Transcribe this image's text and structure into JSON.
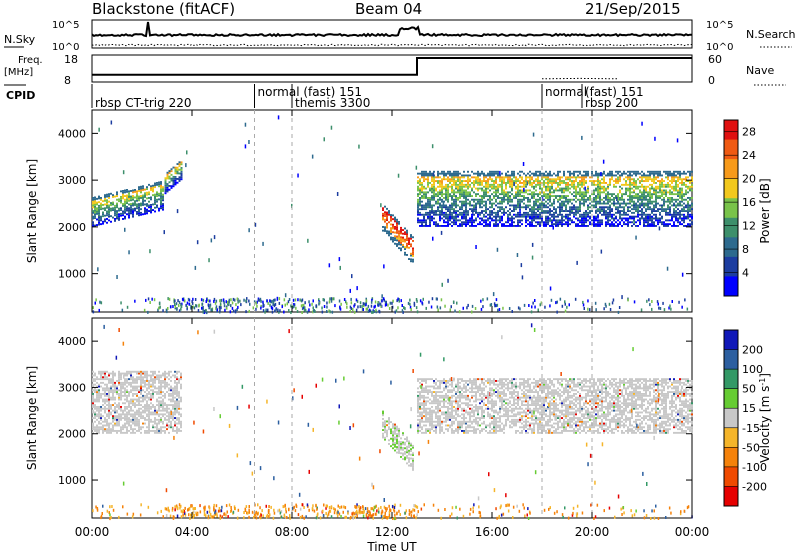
{
  "header": {
    "station": "Blackstone (fitACF)",
    "beam": "Beam 04",
    "date": "21/Sep/2015"
  },
  "top_panels": {
    "nsky_label": "N.Sky",
    "nsky_ticks": [
      "10^5",
      "10^0"
    ],
    "nsearch_ticks": [
      "10^5",
      "10^0"
    ],
    "nsearch_label": "N.Search",
    "freq_label": "Freq.",
    "freq_unit": "[MHz]",
    "freq_ticks": [
      "18",
      "8"
    ],
    "nave_ticks": [
      "60",
      "0"
    ],
    "nave_label": "Nave",
    "freq_series": {
      "times_hours": [
        0,
        13.0,
        13.0,
        24
      ],
      "values_mhz": [
        10.5,
        10.5,
        17.2,
        17.2
      ]
    },
    "nave_series": {
      "times_hours": [
        18,
        19.5,
        21
      ],
      "values": [
        5,
        6,
        5
      ]
    }
  },
  "cpid": {
    "label": "CPID",
    "markers": [
      {
        "time": 0.0,
        "text": "rbsp CT-trig 220",
        "row": 2
      },
      {
        "time": 6.5,
        "text": "normal (fast) 151",
        "row": 1
      },
      {
        "time": 8.0,
        "text": "themis 3300",
        "row": 2
      },
      {
        "time": 18.0,
        "text": "normal",
        "row": 1
      },
      {
        "time": 19.6,
        "text": "(fast) 151",
        "row": 1
      },
      {
        "time": 19.6,
        "text": "rbsp 200",
        "row": 2
      }
    ]
  },
  "chart_data": [
    {
      "type": "heatmap",
      "title": "",
      "xlabel": "Time UT",
      "ylabel": "Slant Range [km]",
      "xlim": [
        0,
        24
      ],
      "ylim": [
        180,
        4500
      ],
      "x_ticks": [
        "00:00",
        "04:00",
        "08:00",
        "12:00",
        "16:00",
        "20:00",
        "00:00"
      ],
      "y_ticks": [
        1000,
        2000,
        3000,
        4000
      ],
      "colorbar": {
        "label": "Power [dB]",
        "ticks": [
          4,
          8,
          12,
          16,
          20,
          24,
          28
        ],
        "range": [
          0,
          30
        ]
      },
      "scatter_bands": [
        {
          "t_start": 0.0,
          "t_end": 2.9,
          "range_km": [
            2000,
            2800
          ]
        },
        {
          "t_start": 2.9,
          "t_end": 3.6,
          "range_km": [
            2700,
            3350
          ]
        },
        {
          "t_start": 11.6,
          "t_end": 12.9,
          "range_km": [
            1200,
            2200
          ]
        },
        {
          "t_start": 13.0,
          "t_end": 24.0,
          "range_km": [
            2000,
            3200
          ]
        }
      ]
    },
    {
      "type": "heatmap",
      "title": "",
      "xlabel": "Time UT",
      "ylabel": "Slant Range [km]",
      "xlim": [
        0,
        24
      ],
      "ylim": [
        180,
        4500
      ],
      "x_ticks": [
        "00:00",
        "04:00",
        "08:00",
        "12:00",
        "16:00",
        "20:00",
        "00:00"
      ],
      "y_ticks": [
        1000,
        2000,
        3000,
        4000
      ],
      "colorbar": {
        "label": "Velocity [m s^-1]",
        "ticks": [
          "200",
          "100",
          "50",
          "15",
          "-15",
          "-50",
          "-100",
          "-200"
        ]
      },
      "scatter_bands": [
        {
          "t_start": 0.0,
          "t_end": 3.6,
          "range_km": [
            2000,
            3350
          ]
        },
        {
          "t_start": 11.6,
          "t_end": 12.9,
          "range_km": [
            1200,
            2200
          ]
        },
        {
          "t_start": 13.0,
          "t_end": 24.0,
          "range_km": [
            2000,
            3200
          ]
        }
      ]
    }
  ],
  "colors": {
    "power_scale": [
      "#0000ff",
      "#1c3da0",
      "#2d6a8e",
      "#3d8f6b",
      "#79c34a",
      "#f2c81d",
      "#f79a1a",
      "#ef5a13",
      "#e01010"
    ],
    "velocity_scale": [
      "#e60000",
      "#f04a00",
      "#f5820a",
      "#f5b52a",
      "#c8c8c8",
      "#66cc33",
      "#339966",
      "#2c5fa0",
      "#1018b8"
    ],
    "ground_scatter": "#c8c8c8"
  }
}
